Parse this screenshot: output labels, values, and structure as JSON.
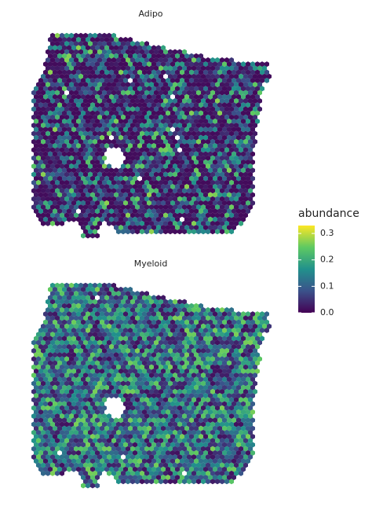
{
  "chart_data": [
    {
      "type": "spatial",
      "title": "Adipo",
      "colormap": "viridis"
    },
    {
      "type": "spatial",
      "title": "Myeloid",
      "colormap": "viridis"
    }
  ],
  "legend": {
    "title": "abundance",
    "colormap": "viridis",
    "clim": [
      0,
      0.33
    ],
    "ticks": [
      {
        "value": 0,
        "label": "0.0"
      },
      {
        "value": 0.1,
        "label": "0.1"
      },
      {
        "value": 0.2,
        "label": "0.2"
      },
      {
        "value": 0.3,
        "label": "0.3"
      }
    ]
  }
}
